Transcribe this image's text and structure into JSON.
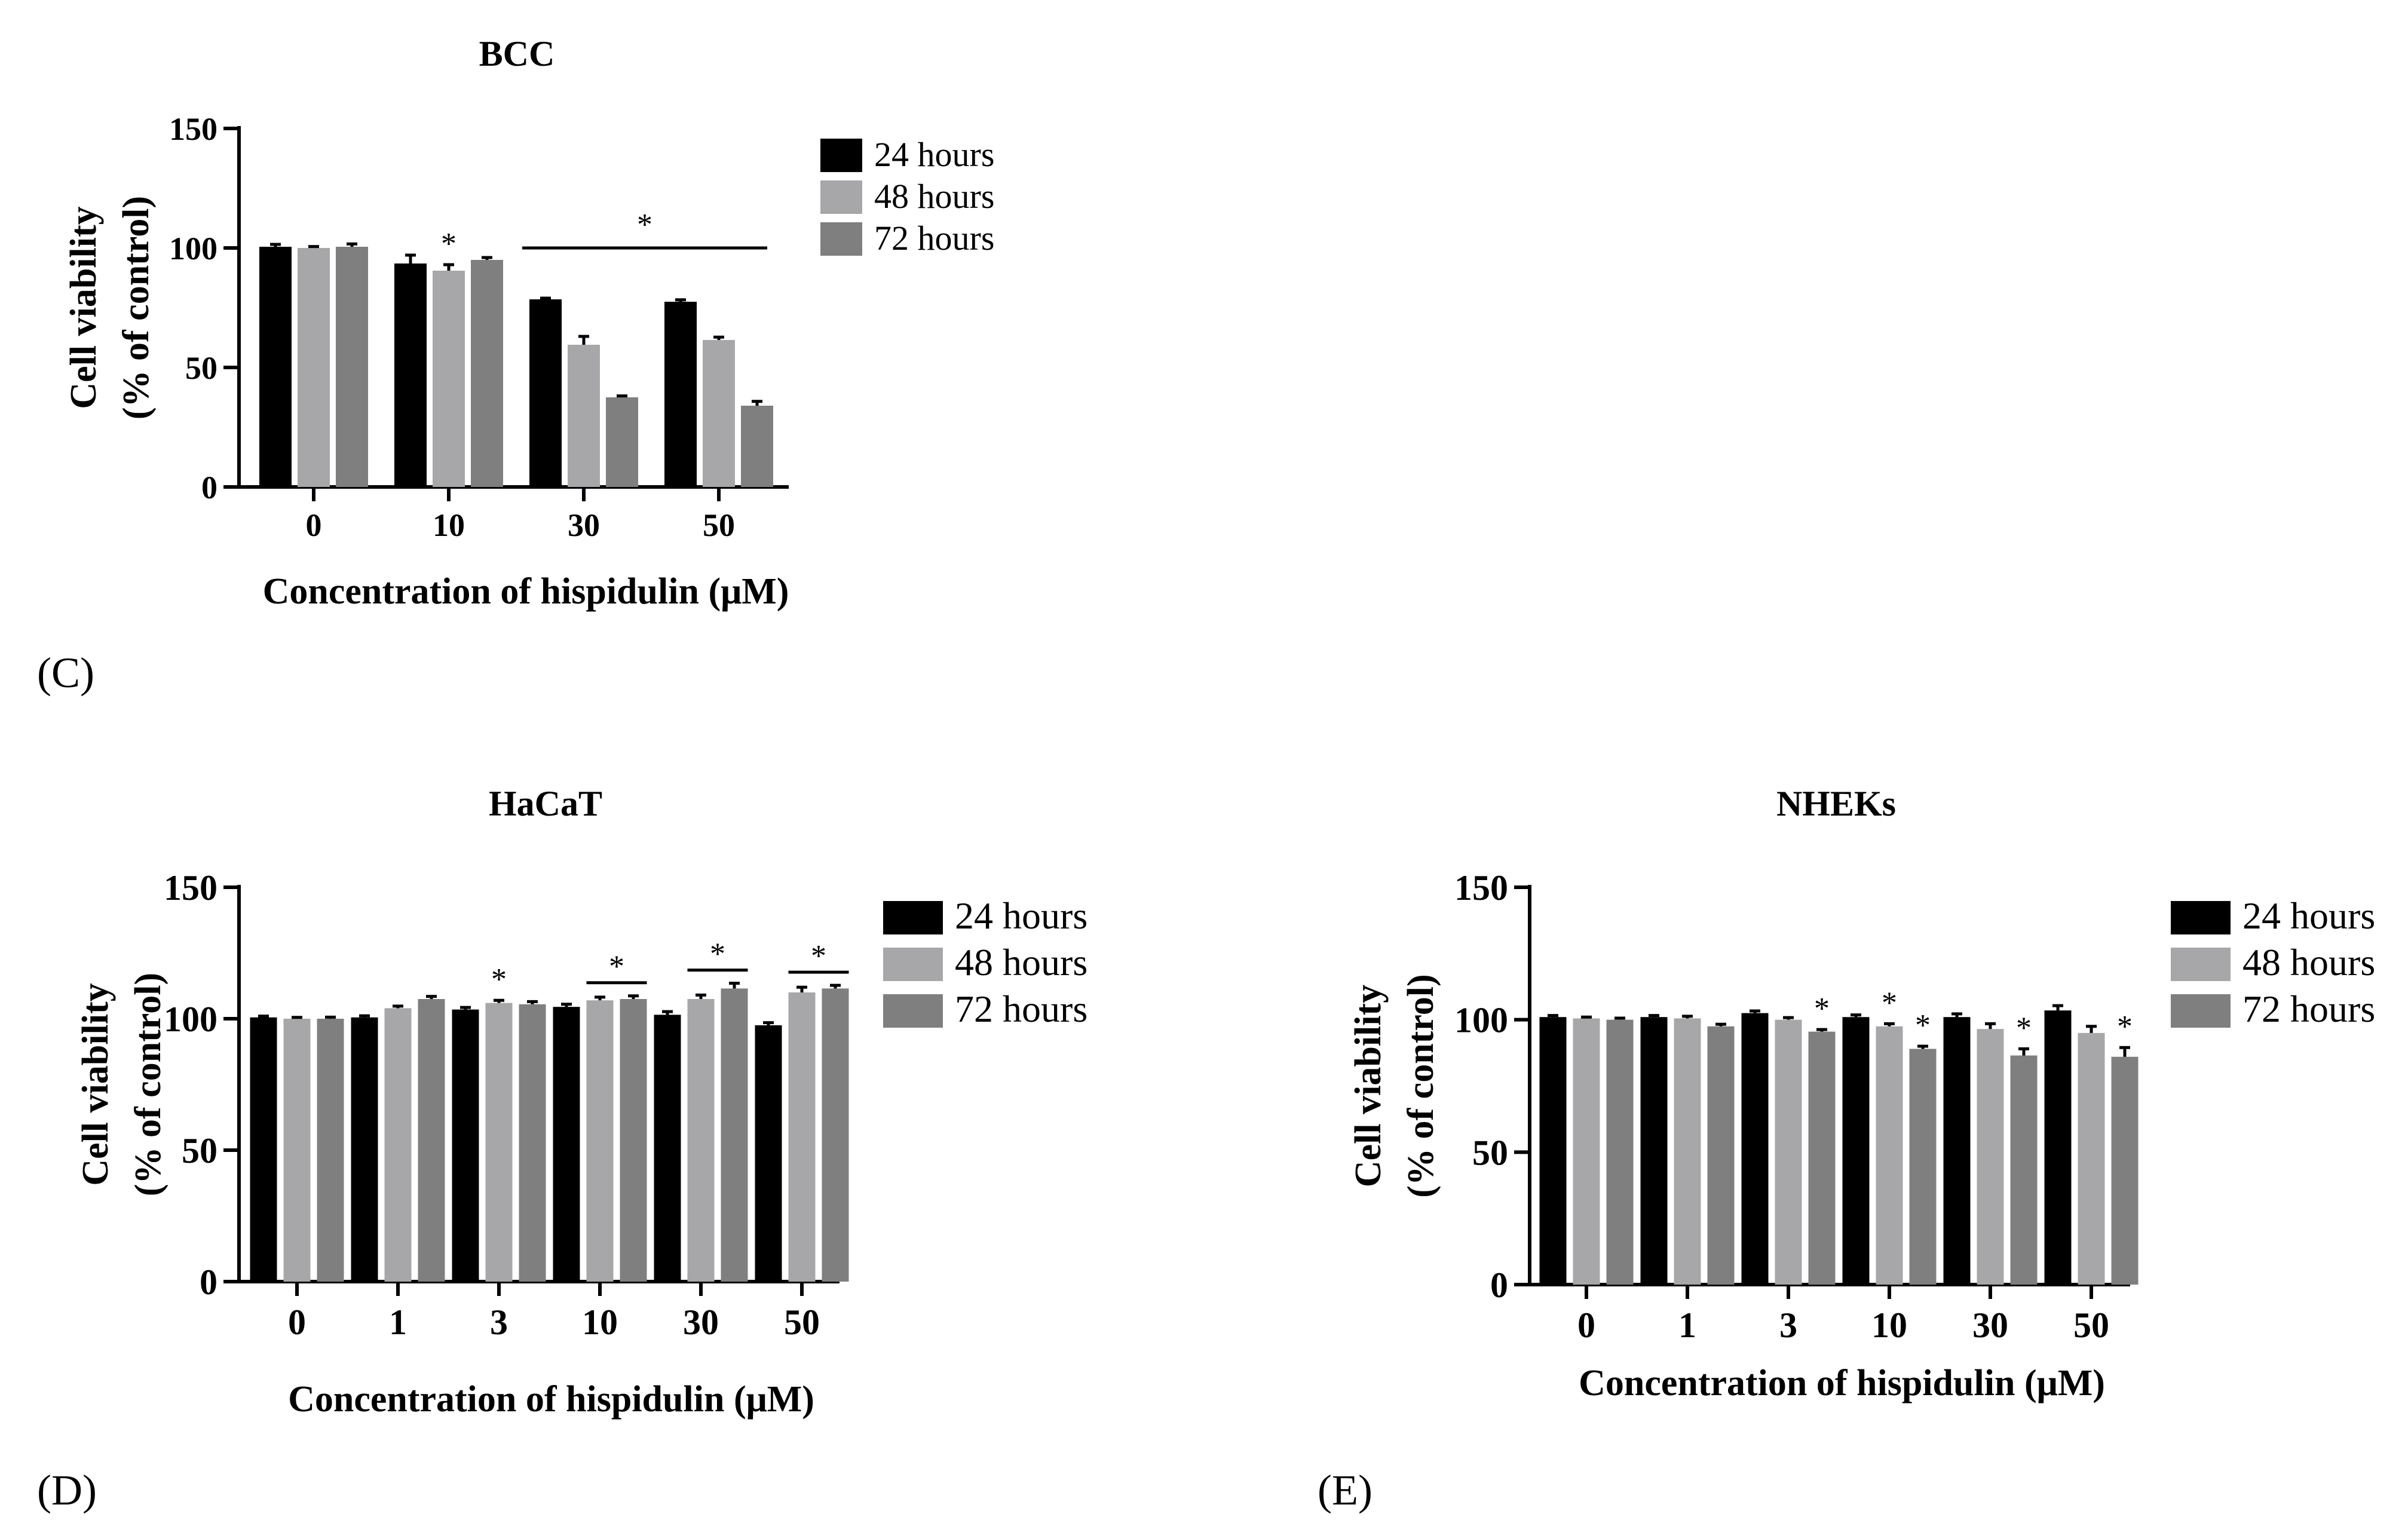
{
  "series_names": [
    "24 hours",
    "48 hours",
    "72 hours"
  ],
  "colors": {
    "h24": "#000000",
    "h48": "#a7a7a9",
    "h72": "#7f7f7f"
  },
  "chart_data": [
    {
      "type": "bar",
      "panel_label": "(C)",
      "title": "BCC",
      "xlabel": "Concentration of hispidulin (μM)",
      "ylabel": [
        "Cell viability",
        "(% of control)"
      ],
      "ylim": [
        0,
        150
      ],
      "yticks": [
        0,
        50,
        100,
        150
      ],
      "categories": [
        "0",
        "10",
        "30",
        "50"
      ],
      "series": [
        {
          "name": "24 hours",
          "values": [
            100.5,
            93.5,
            78.5,
            77.5
          ],
          "errors": [
            1.0,
            3.5,
            0.5,
            0.8
          ]
        },
        {
          "name": "48 hours",
          "values": [
            100.0,
            90.5,
            59.5,
            61.5
          ],
          "errors": [
            0.6,
            2.5,
            3.5,
            1.2
          ]
        },
        {
          "name": "72 hours",
          "values": [
            100.5,
            95.0,
            37.5,
            34.0
          ],
          "errors": [
            1.2,
            1.0,
            0.6,
            1.8
          ]
        }
      ],
      "significance": [
        {
          "label": "*",
          "type": "single",
          "category": 1,
          "series": 1
        },
        {
          "label": "*",
          "type": "line",
          "from_category": 2,
          "to_category": 3
        }
      ]
    },
    {
      "type": "bar",
      "panel_label": "(D)",
      "title": "HaCaT",
      "xlabel": "Concentration of hispidulin (μM)",
      "ylabel": [
        "Cell viability",
        "(% of control)"
      ],
      "ylim": [
        0,
        150
      ],
      "yticks": [
        0,
        50,
        100,
        150
      ],
      "categories": [
        "0",
        "1",
        "3",
        "10",
        "30",
        "50"
      ],
      "series": [
        {
          "name": "24 hours",
          "values": [
            100.5,
            100.5,
            103.5,
            104.5,
            101.5,
            97.5
          ],
          "errors": [
            0.5,
            0.6,
            0.8,
            1.0,
            1.2,
            1.0
          ]
        },
        {
          "name": "48 hours",
          "values": [
            100.0,
            104.0,
            106.0,
            107.0,
            107.5,
            110.0
          ],
          "errors": [
            0.5,
            0.8,
            1.0,
            1.2,
            1.5,
            2.0
          ]
        },
        {
          "name": "72 hours",
          "values": [
            100.0,
            107.5,
            105.5,
            107.5,
            111.5,
            111.5
          ],
          "errors": [
            0.6,
            1.0,
            1.0,
            1.2,
            2.0,
            1.2
          ]
        }
      ],
      "significance": [
        {
          "label": "*",
          "type": "single",
          "category": 2,
          "series": 1
        },
        {
          "label": "*",
          "type": "bracket",
          "category": 3,
          "from_series": 1,
          "to_series": 2
        },
        {
          "label": "*",
          "type": "bracket",
          "category": 4,
          "from_series": 1,
          "to_series": 2
        },
        {
          "label": "*",
          "type": "bracket",
          "category": 5,
          "from_series": 1,
          "to_series": 2
        }
      ]
    },
    {
      "type": "bar",
      "panel_label": "(E)",
      "title": "NHEKs",
      "xlabel": "Concentration of hispidulin (μM)",
      "ylabel": [
        "Cell viability",
        "(% of control)"
      ],
      "ylim": [
        0,
        150
      ],
      "yticks": [
        0,
        50,
        100,
        150
      ],
      "categories": [
        "0",
        "1",
        "3",
        "10",
        "30",
        "50"
      ],
      "series": [
        {
          "name": "24 hours",
          "values": [
            101.0,
            101.0,
            102.5,
            101.0,
            101.0,
            103.5
          ],
          "errors": [
            0.6,
            0.6,
            0.8,
            0.8,
            1.2,
            1.8
          ]
        },
        {
          "name": "48 hours",
          "values": [
            100.5,
            100.5,
            100.0,
            97.5,
            96.5,
            95.0
          ],
          "errors": [
            0.5,
            0.8,
            0.8,
            1.0,
            2.0,
            2.5
          ]
        },
        {
          "name": "72 hours",
          "values": [
            100.0,
            97.5,
            95.5,
            89.0,
            86.5,
            86.0
          ],
          "errors": [
            0.6,
            0.8,
            0.8,
            1.0,
            2.5,
            3.5
          ]
        }
      ],
      "significance": [
        {
          "label": "*",
          "type": "single",
          "category": 2,
          "series": 2
        },
        {
          "label": "*",
          "type": "single",
          "category": 3,
          "series": 1
        },
        {
          "label": "*",
          "type": "single",
          "category": 3,
          "series": 2
        },
        {
          "label": "*",
          "type": "single",
          "category": 4,
          "series": 2
        },
        {
          "label": "*",
          "type": "single",
          "category": 5,
          "series": 2
        }
      ]
    }
  ]
}
